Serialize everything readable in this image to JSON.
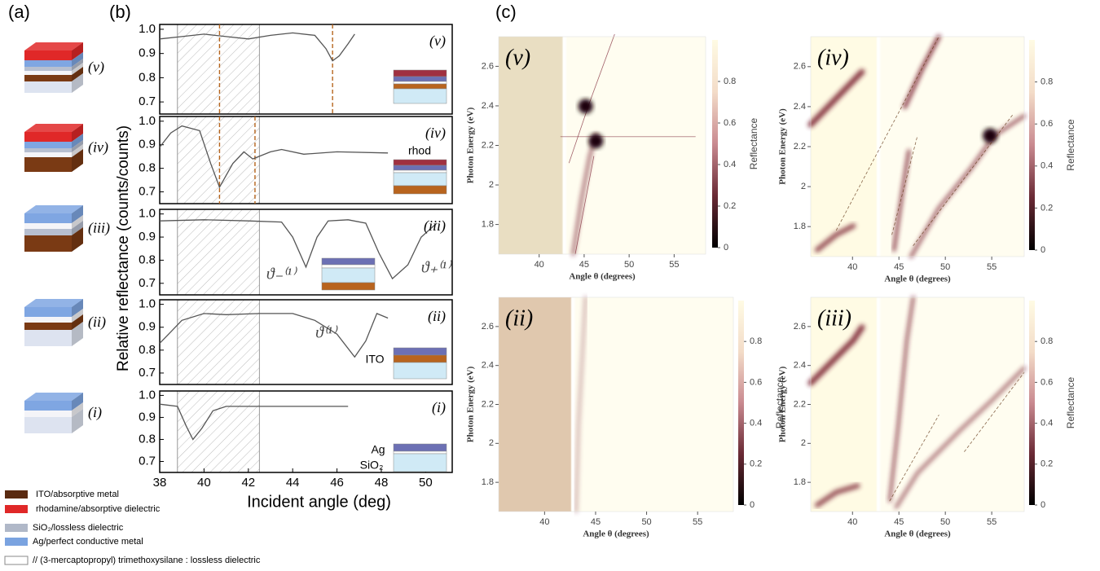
{
  "panel_labels": [
    "(a)",
    "(b)",
    "(c)"
  ],
  "stack_labels": [
    "(v)",
    "(iv)",
    "(iii)",
    "(ii)",
    "(i)"
  ],
  "legend": [
    "ITO/absorptive metal",
    "rhodamine/absorptive dielectric",
    "SiO₂/lossless dielectric",
    "Ag/perfect conductive metal",
    "// (3-mercaptopropyl) trimethoxysilane : lossless dielectric"
  ],
  "chart_data": [
    {
      "type": "line",
      "label": "(v)",
      "ylabel": "Relative reflectance (counts/counts)",
      "color": "#555555",
      "x": [
        38,
        39,
        40,
        40.5,
        41,
        42,
        43,
        44,
        45,
        45.5,
        45.8,
        46.1,
        46.5,
        46.8
      ],
      "values": [
        0.96,
        0.97,
        0.98,
        0.975,
        0.97,
        0.96,
        0.975,
        0.985,
        0.975,
        0.92,
        0.87,
        0.89,
        0.94,
        0.98
      ],
      "vlines": [
        40.7,
        45.8
      ],
      "shaded_region": [
        38.8,
        42.5
      ],
      "xlim": [
        38,
        51.2
      ],
      "ylim": [
        0.65,
        1.02
      ],
      "yticks": [
        0.7,
        0.8,
        0.9,
        {
          "value": 1,
          "label": "1.0"
        }
      ]
    },
    {
      "type": "line",
      "label": "(iv)",
      "color": "#555555",
      "x": [
        38,
        38.5,
        39,
        39.8,
        40.3,
        40.7,
        41.3,
        41.8,
        42.2,
        43,
        43.5,
        44.5,
        46,
        48.3
      ],
      "values": [
        0.89,
        0.95,
        0.98,
        0.96,
        0.82,
        0.72,
        0.82,
        0.87,
        0.84,
        0.87,
        0.88,
        0.86,
        0.87,
        0.865
      ],
      "vlines": [
        40.7,
        42.3
      ],
      "shaded_region": [
        38.8,
        42.5
      ],
      "inset_labels": [
        "rhod"
      ],
      "xlim": [
        38,
        51.2
      ],
      "ylim": [
        0.65,
        1.02
      ],
      "yticks": [
        0.7,
        0.8,
        0.9,
        {
          "value": 1,
          "label": "1.0"
        }
      ]
    },
    {
      "type": "line",
      "label": "(iii)",
      "color": "#555555",
      "x": [
        38,
        40,
        42,
        43.5,
        44,
        44.6,
        45.1,
        45.6,
        46.5,
        47.3,
        47.9,
        48.5,
        49.2,
        49.8,
        50.5
      ],
      "values": [
        0.97,
        0.975,
        0.97,
        0.965,
        0.9,
        0.77,
        0.9,
        0.97,
        0.975,
        0.96,
        0.83,
        0.72,
        0.78,
        0.9,
        0.96
      ],
      "shaded_region": [
        38.8,
        42.5
      ],
      "annotations": [
        "ϑ₋⁽¹⁾",
        "ϑ₊⁽¹⁾"
      ],
      "xlim": [
        38,
        51.2
      ],
      "ylim": [
        0.65,
        1.02
      ],
      "yticks": [
        0.7,
        0.8,
        0.9,
        {
          "value": 1,
          "label": "1.0"
        }
      ]
    },
    {
      "type": "line",
      "label": "(ii)",
      "color": "#555555",
      "x": [
        38,
        38.5,
        39,
        40,
        41,
        42.5,
        44,
        45,
        46,
        46.8,
        47.3,
        47.8,
        48.3
      ],
      "values": [
        0.83,
        0.88,
        0.93,
        0.96,
        0.955,
        0.96,
        0.96,
        0.93,
        0.87,
        0.77,
        0.84,
        0.96,
        0.94
      ],
      "shaded_region": [
        38.8,
        42.5
      ],
      "inset_labels": [
        "ITO"
      ],
      "annotations": [
        "ϑ⁽¹⁾"
      ],
      "xlim": [
        38,
        51.2
      ],
      "ylim": [
        0.65,
        1.02
      ],
      "yticks": [
        0.7,
        0.8,
        0.9,
        {
          "value": 1,
          "label": "1.0"
        }
      ]
    },
    {
      "type": "line",
      "label": "(i)",
      "color": "#555555",
      "xlabel": "Incident angle (deg)",
      "x": [
        38,
        38.8,
        39.2,
        39.5,
        39.9,
        40.4,
        41,
        43,
        46.5
      ],
      "values": [
        0.96,
        0.95,
        0.86,
        0.8,
        0.85,
        0.93,
        0.95,
        0.95,
        0.95
      ],
      "shaded_region": [
        38.8,
        42.5
      ],
      "inset_labels": [
        "Ag",
        "SiO₂"
      ],
      "xlim": [
        38,
        51.2
      ],
      "xticks": [
        38,
        40,
        42,
        44,
        46,
        48,
        50
      ],
      "ylim": [
        0.65,
        1.02
      ],
      "yticks": [
        0.7,
        0.8,
        0.9,
        {
          "value": 1,
          "label": "1.0"
        }
      ]
    },
    {
      "type": "heatmap",
      "label": "(v)",
      "xlabel": "Angle θ  (degrees)",
      "ylabel": "Photon Energy  (eV)",
      "colorbar_label": "Reflectance",
      "xlim": [
        35.5,
        58.5
      ],
      "xticks": [
        40,
        45,
        50,
        55
      ],
      "ylim": [
        1.65,
        2.75
      ],
      "yticks": [
        1.8,
        2,
        2.2,
        2.4,
        2.6
      ],
      "clim": [
        0,
        1
      ],
      "cticks": [
        0,
        0.2,
        0.4,
        0.6,
        0.8
      ]
    },
    {
      "type": "heatmap",
      "label": "(iv)",
      "xlabel": "Angle θ  (degrees)",
      "ylabel": "Photon Energy  (eV)",
      "colorbar_label": "Reflectance",
      "xlim": [
        35.5,
        58.5
      ],
      "xticks": [
        40,
        45,
        50,
        55
      ],
      "ylim": [
        1.65,
        2.75
      ],
      "yticks": [
        1.8,
        2,
        2.2,
        2.4,
        2.6
      ],
      "clim": [
        0,
        1
      ],
      "cticks": [
        0,
        0.2,
        0.4,
        0.6,
        0.8
      ]
    },
    {
      "type": "heatmap",
      "label": "(ii)",
      "xlabel": "Angle θ  (degrees)",
      "ylabel": "Photon Energy  (eV)",
      "colorbar_label": "Reflectance",
      "xlim": [
        35.5,
        58.5
      ],
      "xticks": [
        40,
        45,
        50,
        55
      ],
      "ylim": [
        1.65,
        2.75
      ],
      "yticks": [
        1.8,
        2,
        2.2,
        2.4,
        2.6
      ],
      "clim": [
        0,
        1
      ],
      "cticks": [
        0,
        0.2,
        0.4,
        0.6,
        0.8
      ]
    },
    {
      "type": "heatmap",
      "label": "(iii)",
      "xlabel": "Angle θ  (degrees)",
      "ylabel": "Photon Energy  (eV)",
      "colorbar_label": "Reflectance",
      "xlim": [
        35.5,
        58.5
      ],
      "xticks": [
        40,
        45,
        50,
        55
      ],
      "ylim": [
        1.65,
        2.75
      ],
      "yticks": [
        1.8,
        2,
        2.2,
        2.4,
        2.6
      ],
      "clim": [
        0,
        1
      ],
      "cticks": [
        0,
        0.2,
        0.4,
        0.6,
        0.8
      ]
    }
  ]
}
